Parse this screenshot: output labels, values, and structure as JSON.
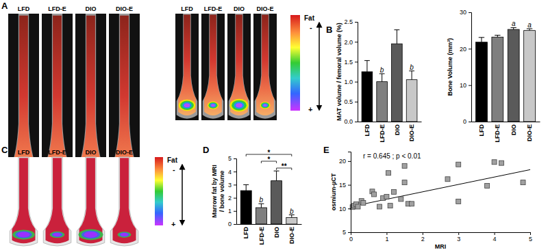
{
  "panel_labels": [
    "A",
    "B",
    "C",
    "D",
    "E"
  ],
  "images": {
    "A": {
      "groups": [
        [
          "LFD",
          "LFD-E",
          "DIO",
          "DIO-E"
        ],
        [
          "LFD",
          "LFD-E",
          "DIO",
          "DIO-E"
        ]
      ],
      "colorbar": {
        "label": "Fat",
        "top": "-",
        "bottom": "+"
      }
    },
    "C": {
      "groups": [
        [
          "LFD",
          "LFD-E",
          "DIO",
          "DIO-E"
        ]
      ],
      "colorbar": {
        "label": "Fat",
        "top": "-",
        "bottom": "+"
      }
    }
  },
  "chart_data": [
    {
      "type": "bar",
      "ylabel": "MAT volume / femoral volume (%)",
      "categories": [
        "LFD",
        "LFD-E",
        "DIO",
        "DIO-E"
      ],
      "values": [
        1.25,
        1.0,
        1.95,
        1.05
      ],
      "errors": [
        0.28,
        0.2,
        0.35,
        0.22
      ],
      "colors": [
        "#000000",
        "#7f7f7f",
        "#5a5a5a",
        "#c8c8c8"
      ],
      "ylim": [
        0,
        2.5
      ],
      "yticks": [
        {
          "value": 0,
          "label": "0.0"
        },
        0.5,
        {
          "value": 1,
          "label": "1.0"
        },
        1.5,
        {
          "value": 2,
          "label": "2.0"
        },
        2.5
      ],
      "annotations": [
        {
          "category": "LFD-E",
          "text": "b"
        },
        {
          "category": "DIO-E",
          "text": "b"
        }
      ]
    },
    {
      "type": "bar",
      "ylabel": "Bone Volume (mm³)",
      "categories": [
        "LFD",
        "LFD-E",
        "DIO",
        "DIO-E"
      ],
      "values": [
        21.8,
        23.2,
        25.3,
        25.0
      ],
      "errors": [
        1.3,
        0.5,
        0.5,
        0.5
      ],
      "colors": [
        "#000000",
        "#7f7f7f",
        "#5a5a5a",
        "#c8c8c8"
      ],
      "ylim": [
        0,
        30
      ],
      "yticks": [
        0,
        10,
        20,
        30
      ],
      "annotations": [
        {
          "category": "DIO",
          "text": "a"
        },
        {
          "category": "DIO-E",
          "text": "a"
        }
      ]
    },
    {
      "type": "bar",
      "ylabel": [
        "Marrow fat by MRI",
        "/ bone volume"
      ],
      "categories": [
        "LFD",
        "LFD-E",
        "DIO",
        "DIO-E"
      ],
      "values": [
        2.55,
        1.25,
        3.3,
        0.5
      ],
      "errors": [
        0.45,
        0.3,
        0.75,
        0.2
      ],
      "colors": [
        "#000000",
        "#7f7f7f",
        "#5a5a5a",
        "#c8c8c8"
      ],
      "ylim": [
        0,
        5
      ],
      "yticks": [
        0,
        1,
        2,
        3,
        4,
        5
      ],
      "annotations": [
        {
          "category": "LFD-E",
          "text": "b"
        },
        {
          "category": "DIO-E",
          "text": "b"
        }
      ],
      "brackets": [
        {
          "from": "LFD",
          "to": "DIO-E",
          "text": "*"
        },
        {
          "from": "LFD-E",
          "to": "DIO",
          "text": "*"
        },
        {
          "from": "DIO",
          "to": "DIO-E",
          "text": "**"
        }
      ]
    },
    {
      "type": "scatter",
      "xlabel": "MRI",
      "ylabel": "osmium-µCT",
      "x": [
        0.05,
        0.1,
        0.15,
        0.2,
        0.3,
        0.35,
        0.6,
        0.65,
        0.8,
        0.9,
        1.0,
        1.05,
        1.1,
        1.2,
        1.4,
        1.5,
        1.5,
        1.6,
        1.7,
        2.7,
        3.0,
        3.0,
        3.8,
        4.0,
        4.2,
        4.8
      ],
      "values": [
        10.3,
        10.6,
        10.9,
        10.4,
        11.6,
        11.2,
        13.6,
        13.0,
        10.4,
        12.2,
        12.5,
        17.5,
        10.6,
        13.5,
        12.0,
        15.5,
        19.0,
        11.0,
        11.0,
        16.2,
        19.3,
        11.5,
        14.8,
        19.8,
        19.6,
        15.5
      ],
      "xlim": [
        0,
        5
      ],
      "ylim": [
        5,
        22
      ],
      "xticks": [
        0,
        1,
        2,
        3,
        4,
        5
      ],
      "yticks": [
        5,
        10,
        15,
        20
      ],
      "annotation": "r = 0.645 ; p < 0.01",
      "trend": {
        "x": [
          0,
          5
        ],
        "values": [
          10.4,
          18.2
        ]
      },
      "marker": "square",
      "color": "#a0a0a0"
    }
  ]
}
